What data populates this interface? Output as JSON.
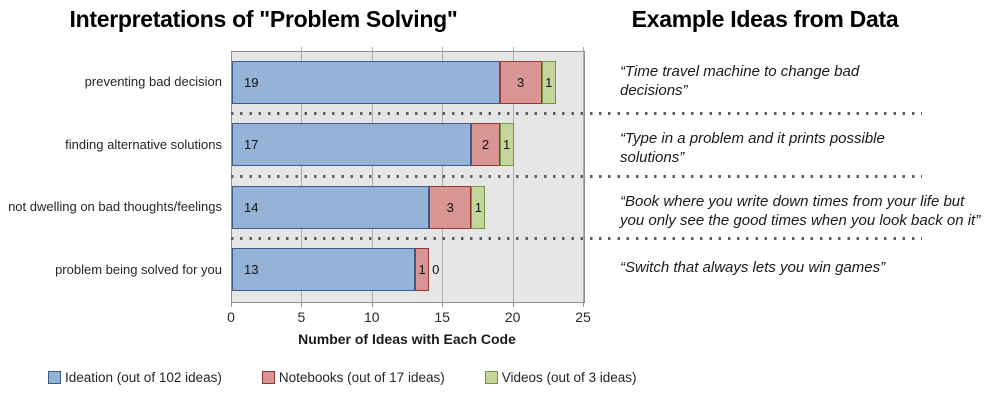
{
  "left_title": "Interpretations of \"Problem Solving\"",
  "right_title": "Example Ideas from Data",
  "chart_data": {
    "type": "bar",
    "orientation": "horizontal",
    "stacked": true,
    "title": "Interpretations of \"Problem Solving\"",
    "categories": [
      "preventing bad decision",
      "finding alternative solutions",
      "not dwelling on bad thoughts/feelings",
      "problem being solved for you"
    ],
    "series": [
      {
        "name": "Ideation (out of 102 ideas)",
        "values": [
          19,
          17,
          14,
          13
        ],
        "fill": "#95B3D7",
        "border": "#385D8A"
      },
      {
        "name": "Notebooks (out of 17 ideas)",
        "values": [
          3,
          2,
          3,
          1
        ],
        "fill": "#D99694",
        "border": "#953735"
      },
      {
        "name": "Videos (out of 3 ideas)",
        "values": [
          1,
          1,
          1,
          0
        ],
        "fill": "#C3D69B",
        "border": "#76923C"
      }
    ],
    "xlabel": "Number of Ideas with Each Code",
    "xlim": [
      0,
      25
    ],
    "xticks": [
      0,
      5,
      10,
      15,
      20,
      25
    ],
    "grid": true,
    "plot_bg": "#E6E6E6",
    "legend_position": "bottom"
  },
  "quotes": [
    "“Time travel machine to change bad\ndecisions”",
    "“Type in a problem and it prints possible\nsolutions”",
    "“Book where you write down times from your life but\nyou only see the good times when you look back on it”",
    "“Switch that always lets you win games”"
  ]
}
